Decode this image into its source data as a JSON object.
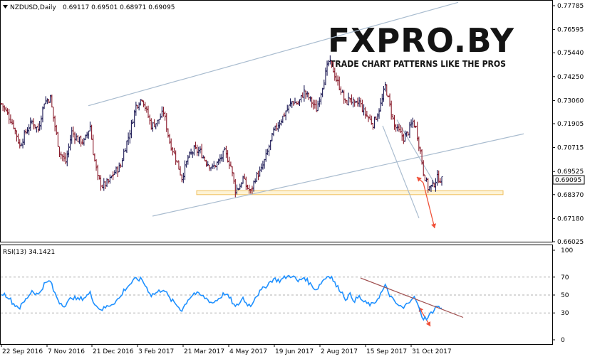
{
  "header": {
    "symbol": "NZDUSD,Daily",
    "ohlc": "0.69117 0.69501 0.68971 0.69095"
  },
  "logo": {
    "main": "FXPRO.BY",
    "tagline": "TRADE CHART PATTERNS LIKE THE PROS"
  },
  "indicator": {
    "label": "RSI(13) 34.1421"
  },
  "colors": {
    "bull_bar": "#1d1a55",
    "bear_bar": "#8a1c2c",
    "rsi_line": "#1e90ff",
    "channel_line": "#a9bccf",
    "trend_arrow": "#f05038",
    "zone_fill": "#fdf3d6",
    "zone_stroke": "#f0c060",
    "rsi_trendline": "#a05050"
  },
  "chart_data": [
    {
      "type": "bar",
      "subtype": "ohlc",
      "symbol": "NZDUSD",
      "timeframe": "Daily",
      "last_price_label": "0.69095",
      "y_ticks": [
        "0.77785",
        "0.76595",
        "0.75440",
        "0.74250",
        "0.73060",
        "0.71905",
        "0.70715",
        "0.69525",
        "0.68370",
        "0.67180",
        "0.66025"
      ],
      "ylim": [
        0.66025,
        0.77785
      ],
      "x_ticks": [
        "22 Sep 2016",
        "7 Nov 2016",
        "21 Dec 2016",
        "3 Feb 2017",
        "21 Mar 2017",
        "4 May 2017",
        "19 Jun 2017",
        "2 Aug 2017",
        "15 Sep 2017",
        "31 Oct 2017"
      ],
      "close_path": [
        [
          0,
          0.729
        ],
        [
          4,
          0.724
        ],
        [
          8,
          0.718
        ],
        [
          12,
          0.708
        ],
        [
          16,
          0.715
        ],
        [
          20,
          0.72
        ],
        [
          24,
          0.716
        ],
        [
          28,
          0.73
        ],
        [
          32,
          0.732
        ],
        [
          34,
          0.722
        ],
        [
          38,
          0.705
        ],
        [
          42,
          0.7
        ],
        [
          46,
          0.715
        ],
        [
          50,
          0.711
        ],
        [
          54,
          0.71
        ],
        [
          58,
          0.718
        ],
        [
          60,
          0.705
        ],
        [
          63,
          0.692
        ],
        [
          66,
          0.688
        ],
        [
          70,
          0.69
        ],
        [
          74,
          0.695
        ],
        [
          78,
          0.698
        ],
        [
          80,
          0.705
        ],
        [
          84,
          0.715
        ],
        [
          88,
          0.728
        ],
        [
          92,
          0.732
        ],
        [
          95,
          0.725
        ],
        [
          98,
          0.718
        ],
        [
          102,
          0.72
        ],
        [
          106,
          0.725
        ],
        [
          110,
          0.71
        ],
        [
          114,
          0.702
        ],
        [
          118,
          0.692
        ],
        [
          122,
          0.702
        ],
        [
          126,
          0.706
        ],
        [
          130,
          0.705
        ],
        [
          134,
          0.7
        ],
        [
          138,
          0.697
        ],
        [
          142,
          0.7
        ],
        [
          146,
          0.705
        ],
        [
          150,
          0.698
        ],
        [
          153,
          0.686
        ],
        [
          156,
          0.688
        ],
        [
          158,
          0.692
        ],
        [
          160,
          0.688
        ],
        [
          163,
          0.685
        ],
        [
          166,
          0.692
        ],
        [
          170,
          0.696
        ],
        [
          174,
          0.705
        ],
        [
          178,
          0.715
        ],
        [
          182,
          0.72
        ],
        [
          186,
          0.725
        ],
        [
          190,
          0.73
        ],
        [
          194,
          0.729
        ],
        [
          198,
          0.735
        ],
        [
          202,
          0.731
        ],
        [
          206,
          0.726
        ],
        [
          210,
          0.738
        ],
        [
          214,
          0.75
        ],
        [
          216,
          0.748
        ],
        [
          219,
          0.741
        ],
        [
          222,
          0.736
        ],
        [
          225,
          0.729
        ],
        [
          228,
          0.732
        ],
        [
          231,
          0.728
        ],
        [
          234,
          0.73
        ],
        [
          237,
          0.725
        ],
        [
          240,
          0.722
        ],
        [
          243,
          0.719
        ],
        [
          246,
          0.724
        ],
        [
          249,
          0.731
        ],
        [
          251,
          0.738
        ],
        [
          254,
          0.728
        ],
        [
          257,
          0.718
        ],
        [
          260,
          0.715
        ],
        [
          263,
          0.712
        ],
        [
          266,
          0.715
        ],
        [
          269,
          0.72
        ],
        [
          271,
          0.717
        ],
        [
          274,
          0.705
        ],
        [
          276,
          0.695
        ],
        [
          279,
          0.687
        ],
        [
          282,
          0.688
        ],
        [
          285,
          0.692
        ],
        [
          288,
          0.691
        ]
      ],
      "channel_upper": [
        [
          0.728,
          0.751
        ],
        [
          0.78,
          0.776
        ]
      ],
      "channel_lower": [
        [
          0.673,
          0.6847
        ],
        [
          0.698,
          0.714
        ]
      ],
      "descending_channel": [
        [
          0.72,
          0.688
        ],
        [
          0.705,
          0.672
        ]
      ],
      "support_zone": [
        0.6837,
        0.6857
      ],
      "projection": "down from 0.6920 toward 0.6700"
    },
    {
      "type": "line",
      "name": "RSI(13)",
      "current_value": 34.1421,
      "y_ticks": [
        "100",
        "70",
        "50",
        "30",
        "0"
      ],
      "ylim": [
        0,
        100
      ],
      "levels": [
        30,
        50,
        70
      ],
      "path": [
        [
          0,
          52
        ],
        [
          4,
          49
        ],
        [
          8,
          40
        ],
        [
          12,
          36
        ],
        [
          16,
          45
        ],
        [
          20,
          55
        ],
        [
          24,
          50
        ],
        [
          28,
          62
        ],
        [
          32,
          66
        ],
        [
          34,
          55
        ],
        [
          38,
          42
        ],
        [
          42,
          38
        ],
        [
          46,
          48
        ],
        [
          50,
          45
        ],
        [
          54,
          47
        ],
        [
          58,
          52
        ],
        [
          60,
          44
        ],
        [
          63,
          36
        ],
        [
          66,
          34
        ],
        [
          70,
          38
        ],
        [
          74,
          42
        ],
        [
          78,
          48
        ],
        [
          80,
          55
        ],
        [
          84,
          62
        ],
        [
          88,
          68
        ],
        [
          92,
          67
        ],
        [
          95,
          58
        ],
        [
          98,
          50
        ],
        [
          102,
          53
        ],
        [
          106,
          57
        ],
        [
          110,
          46
        ],
        [
          114,
          40
        ],
        [
          118,
          33
        ],
        [
          122,
          45
        ],
        [
          126,
          52
        ],
        [
          130,
          50
        ],
        [
          134,
          46
        ],
        [
          138,
          41
        ],
        [
          142,
          46
        ],
        [
          146,
          52
        ],
        [
          150,
          45
        ],
        [
          153,
          36
        ],
        [
          156,
          42
        ],
        [
          158,
          47
        ],
        [
          160,
          41
        ],
        [
          163,
          38
        ],
        [
          166,
          48
        ],
        [
          170,
          55
        ],
        [
          174,
          62
        ],
        [
          178,
          68
        ],
        [
          182,
          66
        ],
        [
          186,
          70
        ],
        [
          190,
          72
        ],
        [
          194,
          65
        ],
        [
          198,
          70
        ],
        [
          202,
          62
        ],
        [
          206,
          56
        ],
        [
          210,
          66
        ],
        [
          214,
          72
        ],
        [
          216,
          70
        ],
        [
          219,
          60
        ],
        [
          222,
          55
        ],
        [
          225,
          46
        ],
        [
          228,
          50
        ],
        [
          231,
          44
        ],
        [
          234,
          48
        ],
        [
          237,
          42
        ],
        [
          240,
          40
        ],
        [
          243,
          39
        ],
        [
          246,
          46
        ],
        [
          249,
          54
        ],
        [
          251,
          60
        ],
        [
          254,
          50
        ],
        [
          257,
          42
        ],
        [
          260,
          38
        ],
        [
          263,
          35
        ],
        [
          266,
          42
        ],
        [
          269,
          48
        ],
        [
          271,
          45
        ],
        [
          274,
          30
        ],
        [
          276,
          24
        ],
        [
          279,
          25
        ],
        [
          282,
          32
        ],
        [
          285,
          38
        ],
        [
          288,
          34
        ]
      ],
      "trendline": [
        [
          64,
          25
        ],
        [
          40,
          55
        ]
      ],
      "projection": "down toward 25"
    }
  ]
}
